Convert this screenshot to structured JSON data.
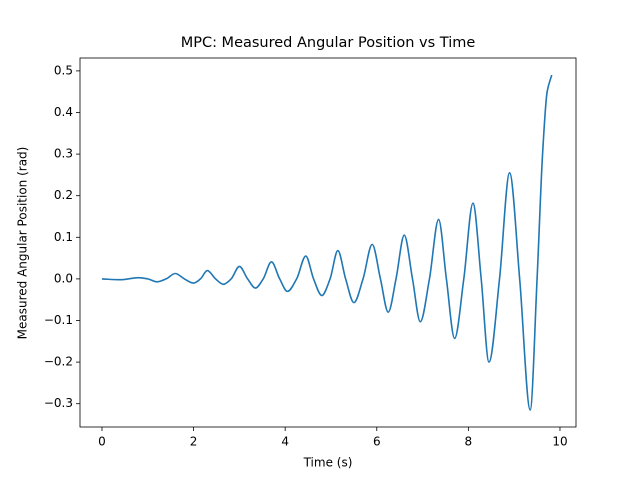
{
  "chart_data": {
    "type": "line",
    "title": "MPC: Measured Angular Position vs Time",
    "x_label": "Time (s)",
    "y_label": "Measured Angular Position (rad)",
    "xlim": [
      -0.48,
      10.35
    ],
    "ylim": [
      -0.356,
      0.531
    ],
    "xticks": [
      0,
      2,
      4,
      6,
      8,
      10
    ],
    "yticks": [
      {
        "value": -0.3,
        "label": "−0.3"
      },
      {
        "value": -0.2,
        "label": "−0.2"
      },
      {
        "value": -0.1,
        "label": "−0.1"
      },
      {
        "value": 0,
        "label": "0.0"
      },
      0.1,
      0.2,
      0.3,
      0.4,
      0.5
    ],
    "series": [
      {
        "name": "Measured Angular Position",
        "color": "#1f77b4",
        "x": [
          0,
          0.4,
          0.8,
          1.0,
          1.2,
          1.4,
          1.6,
          1.8,
          2.0,
          2.15,
          2.3,
          2.48,
          2.65,
          2.82,
          3.0,
          3.18,
          3.35,
          3.52,
          3.7,
          3.88,
          4.05,
          4.25,
          4.45,
          4.62,
          4.8,
          4.98,
          5.15,
          5.32,
          5.5,
          5.7,
          5.9,
          6.08,
          6.25,
          6.42,
          6.6,
          6.78,
          6.95,
          7.15,
          7.35,
          7.52,
          7.7,
          7.9,
          8.1,
          8.28,
          8.45,
          8.68,
          8.9,
          9.12,
          9.35,
          9.5,
          9.62,
          9.72,
          9.82
        ],
        "values": [
          0,
          -0.002,
          0.003,
          0,
          -0.007,
          0,
          0.013,
          0,
          -0.01,
          0,
          0.02,
          0,
          -0.013,
          0,
          0.03,
          0,
          -0.022,
          0,
          0.041,
          0,
          -0.03,
          0,
          0.055,
          0,
          -0.04,
          0,
          0.068,
          0,
          -0.057,
          0,
          0.083,
          0,
          -0.08,
          0,
          0.105,
          0,
          -0.103,
          0,
          0.143,
          0,
          -0.143,
          0,
          0.182,
          0,
          -0.2,
          0,
          0.255,
          0,
          -0.315,
          0,
          0.3,
          0.45,
          0.49
        ]
      }
    ]
  }
}
